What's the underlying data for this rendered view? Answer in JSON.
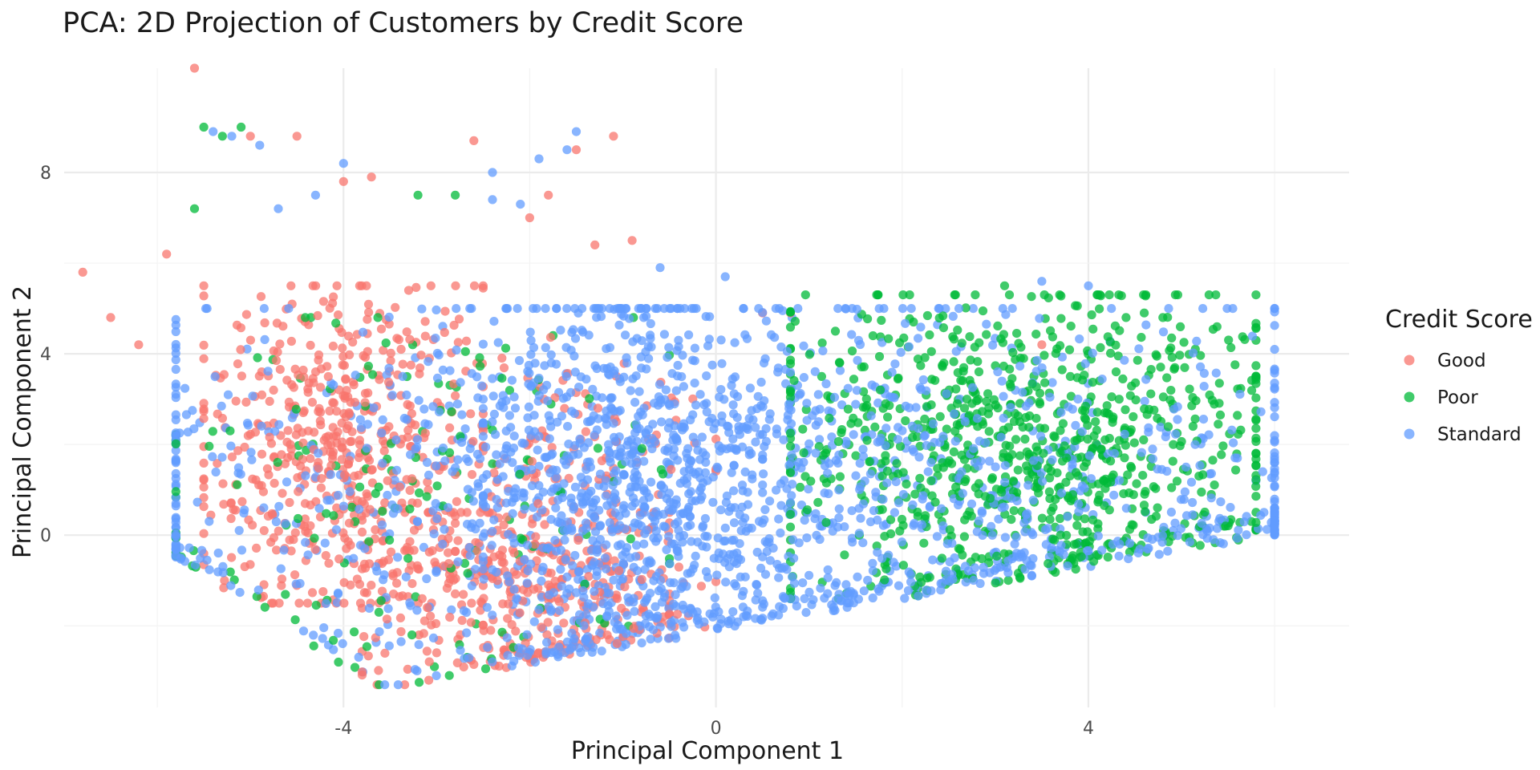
{
  "chart_data": {
    "type": "scatter",
    "title": "PCA: 2D Projection of Customers by Credit Score",
    "xlabel": "Principal Component 1",
    "ylabel": "Principal Component 2",
    "xlim": [
      -7.0,
      6.8
    ],
    "ylim": [
      -3.8,
      10.3
    ],
    "x_ticks": [
      -4,
      0,
      4
    ],
    "y_ticks": [
      0,
      4,
      8
    ],
    "grid": true,
    "legend": {
      "title": "Credit Score",
      "position": "right"
    },
    "point_alpha": 0.75,
    "series": [
      {
        "name": "Good",
        "color": "#F8766D",
        "clusters": [
          {
            "x": [
              -5.5,
              -2.5
            ],
            "y": [
              -1.5,
              5.5
            ],
            "count": 520
          },
          {
            "x": [
              -3.8,
              -0.5
            ],
            "y": [
              -3.3,
              0.5
            ],
            "count": 320
          },
          {
            "x": [
              -2.8,
              0.0
            ],
            "y": [
              -2.8,
              4.5
            ],
            "count": 160
          }
        ],
        "points": [
          {
            "x": -5.6,
            "y": 10.3
          },
          {
            "x": -6.8,
            "y": 5.8
          },
          {
            "x": -6.5,
            "y": 4.8
          },
          {
            "x": -6.2,
            "y": 4.2
          },
          {
            "x": -5.9,
            "y": 6.2
          },
          {
            "x": -5.0,
            "y": 8.8
          },
          {
            "x": -4.5,
            "y": 8.8
          },
          {
            "x": -4.0,
            "y": 7.8
          },
          {
            "x": -3.7,
            "y": 7.9
          },
          {
            "x": -2.6,
            "y": 8.7
          },
          {
            "x": -1.5,
            "y": 8.5
          },
          {
            "x": -1.1,
            "y": 8.8
          },
          {
            "x": -2.0,
            "y": 7.0
          },
          {
            "x": -1.8,
            "y": 7.5
          },
          {
            "x": -1.3,
            "y": 6.4
          },
          {
            "x": -0.9,
            "y": 6.5
          },
          {
            "x": 0.5,
            "y": 4.9
          },
          {
            "x": 0.8,
            "y": 4.9
          },
          {
            "x": -3.3,
            "y": 5.4
          },
          {
            "x": 3.5,
            "y": 4.2
          }
        ]
      },
      {
        "name": "Poor",
        "color": "#00BA38",
        "clusters": [
          {
            "x": [
              0.8,
              5.8
            ],
            "y": [
              -1.4,
              5.3
            ],
            "count": 900
          },
          {
            "x": [
              -5.8,
              -0.5
            ],
            "y": [
              -3.3,
              4.8
            ],
            "count": 160
          }
        ],
        "points": [
          {
            "x": -5.5,
            "y": 9.0
          },
          {
            "x": -5.1,
            "y": 9.0
          },
          {
            "x": -5.3,
            "y": 8.8
          },
          {
            "x": -5.6,
            "y": 7.2
          },
          {
            "x": -3.2,
            "y": 7.5
          },
          {
            "x": -2.8,
            "y": 7.5
          },
          {
            "x": 3.1,
            "y": 5.5
          },
          {
            "x": 4.1,
            "y": 5.3
          },
          {
            "x": 4.8,
            "y": 4.8
          },
          {
            "x": 4.6,
            "y": 4.9
          }
        ]
      },
      {
        "name": "Standard",
        "color": "#619CFF",
        "clusters": [
          {
            "x": [
              -5.8,
              6.0
            ],
            "y": [
              -3.3,
              5.0
            ],
            "count": 1600
          },
          {
            "x": [
              -2.5,
              0.5
            ],
            "y": [
              -3.0,
              5.0
            ],
            "count": 500
          }
        ],
        "points": [
          {
            "x": -5.4,
            "y": 8.9
          },
          {
            "x": -5.2,
            "y": 8.8
          },
          {
            "x": -4.9,
            "y": 8.6
          },
          {
            "x": -4.0,
            "y": 8.2
          },
          {
            "x": -2.4,
            "y": 8.0
          },
          {
            "x": -1.6,
            "y": 8.5
          },
          {
            "x": -1.5,
            "y": 8.9
          },
          {
            "x": -1.9,
            "y": 8.3
          },
          {
            "x": -2.1,
            "y": 7.3
          },
          {
            "x": -2.4,
            "y": 7.4
          },
          {
            "x": -4.3,
            "y": 7.5
          },
          {
            "x": -4.7,
            "y": 7.2
          },
          {
            "x": 0.1,
            "y": 5.7
          },
          {
            "x": -0.6,
            "y": 5.9
          },
          {
            "x": 3.5,
            "y": 5.6
          },
          {
            "x": 4.0,
            "y": 5.5
          },
          {
            "x": 5.6,
            "y": 1.7
          },
          {
            "x": 6.0,
            "y": 1.6
          },
          {
            "x": 6.0,
            "y": 0.6
          },
          {
            "x": 5.8,
            "y": 1.2
          }
        ]
      }
    ]
  }
}
